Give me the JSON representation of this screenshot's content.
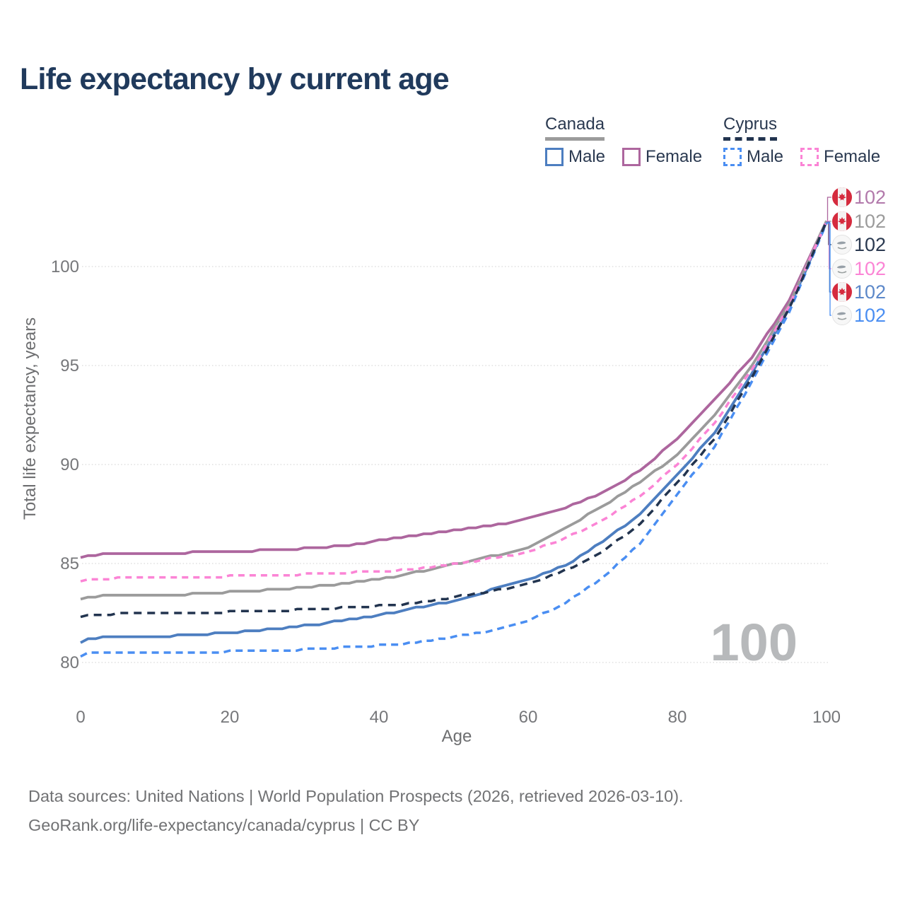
{
  "title": "Life expectancy by current age",
  "legend": {
    "groups": [
      {
        "country": "Canada",
        "line_style": "solid",
        "underline_color": "#9b9b9b",
        "items": [
          {
            "label": "Male",
            "color": "#4d7ec0",
            "dashed": false
          },
          {
            "label": "Female",
            "color": "#ad669e",
            "dashed": false
          }
        ]
      },
      {
        "country": "Cyprus",
        "line_style": "dashed",
        "underline_color": "#22344f",
        "items": [
          {
            "label": "Male",
            "color": "#4a8ef2",
            "dashed": true
          },
          {
            "label": "Female",
            "color": "#fb84d5",
            "dashed": true
          }
        ]
      }
    ]
  },
  "watermark": "100",
  "footer": {
    "line1": "Data sources: United Nations | World Population Prospects (2026, retrieved 2026-03-10).",
    "line2": "GeoRank.org/life-expectancy/canada/cyprus | CC BY"
  },
  "chart_data": {
    "type": "line",
    "title": "Life expectancy by current age",
    "xlabel": "Age",
    "ylabel": "Total life expectancy, years",
    "xlim": [
      0,
      100
    ],
    "ylim": [
      79.5,
      102.5
    ],
    "xticks": [
      0,
      20,
      40,
      60,
      80,
      100
    ],
    "yticks": [
      80,
      85,
      90,
      95,
      100
    ],
    "grid": "horizontal-dotted",
    "legend_position": "top-right",
    "anchor_ages": [
      0,
      1,
      3,
      5,
      10,
      15,
      20,
      25,
      30,
      35,
      40,
      45,
      50,
      55,
      60,
      65,
      70,
      75,
      80,
      85,
      90,
      95,
      100
    ],
    "series": [
      {
        "id": "canada-male",
        "name": "Canada Male",
        "country": "Canada",
        "sex": "Male",
        "color": "#4d7ec0",
        "dash": "solid",
        "end_label": "102",
        "end_label_color": "#5c88c9",
        "flag": "canada-flag-icon",
        "values": [
          80.95,
          81.2,
          81.28,
          81.3,
          81.3,
          81.4,
          81.5,
          81.65,
          81.85,
          82.1,
          82.4,
          82.75,
          83.1,
          83.65,
          84.15,
          84.9,
          86.1,
          87.5,
          89.5,
          91.6,
          94.6,
          97.9,
          102.25
        ]
      },
      {
        "id": "canada-female",
        "name": "Canada Female",
        "country": "Canada",
        "sex": "Female",
        "color": "#ad669e",
        "dash": "solid",
        "end_label": "102",
        "end_label_color": "#b279ab",
        "flag": "canada-flag-icon",
        "values": [
          85.25,
          85.4,
          85.48,
          85.5,
          85.5,
          85.55,
          85.6,
          85.67,
          85.76,
          85.88,
          86.15,
          86.4,
          86.65,
          86.9,
          87.25,
          87.8,
          88.55,
          89.7,
          91.3,
          93.3,
          95.4,
          98.3,
          102.3
        ]
      },
      {
        "id": "canada-total",
        "name": "Canada Both sexes",
        "country": "Canada",
        "sex": "Both",
        "color": "#9b9b9b",
        "dash": "solid",
        "end_label": "102",
        "end_label_color": "#9b9b9b",
        "flag": "canada-flag-icon",
        "values": [
          83.15,
          83.3,
          83.38,
          83.4,
          83.4,
          83.45,
          83.55,
          83.65,
          83.8,
          83.95,
          84.2,
          84.55,
          84.95,
          85.35,
          85.8,
          86.8,
          87.9,
          89.1,
          90.5,
          92.5,
          95.0,
          98.1,
          102.3
        ]
      },
      {
        "id": "cyprus-male",
        "name": "Cyprus Male",
        "country": "Cyprus",
        "sex": "Male",
        "color": "#4a8ef2",
        "dash": "dashed",
        "end_label": "102",
        "end_label_color": "#4a8ef2",
        "flag": "cyprus-flag-icon",
        "values": [
          80.3,
          80.45,
          80.5,
          80.5,
          80.5,
          80.52,
          80.55,
          80.6,
          80.65,
          80.75,
          80.85,
          81.0,
          81.3,
          81.6,
          82.1,
          83.0,
          84.3,
          86.0,
          88.5,
          90.9,
          94.2,
          97.7,
          102.2
        ]
      },
      {
        "id": "cyprus-female",
        "name": "Cyprus Female",
        "country": "Cyprus",
        "sex": "Female",
        "color": "#fb84d5",
        "dash": "dashed",
        "end_label": "102",
        "end_label_color": "#fb84d5",
        "flag": "cyprus-flag-icon",
        "values": [
          84.1,
          84.2,
          84.22,
          84.25,
          84.3,
          84.3,
          84.35,
          84.4,
          84.45,
          84.52,
          84.6,
          84.7,
          84.95,
          85.25,
          85.55,
          86.3,
          87.15,
          88.4,
          90.0,
          92.1,
          94.8,
          98.0,
          102.3
        ]
      },
      {
        "id": "cyprus-total",
        "name": "Cyprus Both sexes",
        "country": "Cyprus",
        "sex": "Both",
        "color": "#22344f",
        "dash": "dashed",
        "end_label": "102",
        "end_label_color": "#2a3950",
        "flag": "cyprus-flag-icon",
        "values": [
          82.3,
          82.4,
          82.42,
          82.45,
          82.45,
          82.5,
          82.55,
          82.6,
          82.68,
          82.75,
          82.85,
          83.0,
          83.3,
          83.6,
          83.95,
          84.65,
          85.6,
          87.0,
          89.1,
          91.3,
          94.4,
          97.85,
          102.3
        ]
      }
    ],
    "end_labels_order": [
      "canada-female",
      "canada-total",
      "cyprus-total",
      "cyprus-female",
      "canada-male",
      "cyprus-male"
    ]
  }
}
